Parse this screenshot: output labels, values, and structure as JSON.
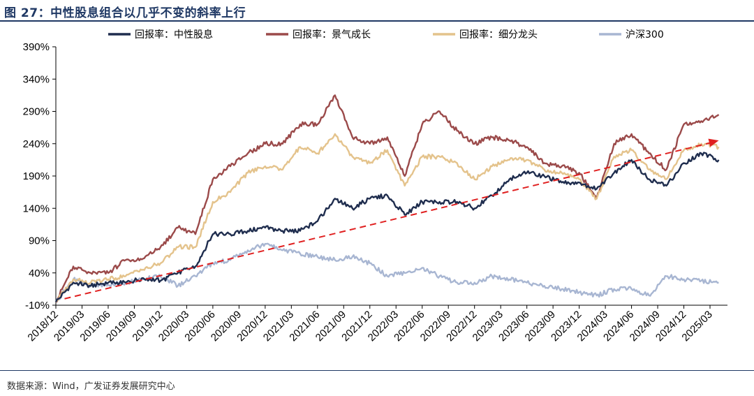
{
  "header": {
    "title": "图 27：中性股息组合以几乎不变的斜率上行"
  },
  "footer": {
    "source": "数据来源：Wind，广发证券发展研究中心"
  },
  "chart_data": {
    "type": "line",
    "title": "",
    "xlabel": "",
    "ylabel": "",
    "ylim": [
      -10,
      390
    ],
    "yticks": [
      "390%",
      "340%",
      "290%",
      "240%",
      "190%",
      "140%",
      "90%",
      "40%",
      "-10%"
    ],
    "ytick_values": [
      390,
      340,
      290,
      240,
      190,
      140,
      90,
      40,
      -10
    ],
    "xticks": [
      "2018/12",
      "2019/03",
      "2019/06",
      "2019/09",
      "2019/12",
      "2020/03",
      "2020/06",
      "2020/09",
      "2020/12",
      "2021/03",
      "2021/06",
      "2021/09",
      "2021/12",
      "2022/03",
      "2022/06",
      "2022/09",
      "2022/12",
      "2023/03",
      "2023/06",
      "2023/09",
      "2023/12",
      "2024/03",
      "2024/06",
      "2024/09",
      "2024/12",
      "2025/03"
    ],
    "x": [
      "2018/12",
      "2019/02",
      "2019/04",
      "2019/06",
      "2019/08",
      "2019/10",
      "2019/12",
      "2020/02",
      "2020/04",
      "2020/06",
      "2020/08",
      "2020/10",
      "2020/12",
      "2021/02",
      "2021/04",
      "2021/06",
      "2021/08",
      "2021/10",
      "2021/12",
      "2022/02",
      "2022/04",
      "2022/06",
      "2022/08",
      "2022/10",
      "2022/12",
      "2023/02",
      "2023/04",
      "2023/06",
      "2023/08",
      "2023/10",
      "2023/12",
      "2024/02",
      "2024/04",
      "2024/06",
      "2024/08",
      "2024/10",
      "2024/12",
      "2025/02",
      "2025/04"
    ],
    "legend_position": "top",
    "series": [
      {
        "name": "回报率：中性股息",
        "color": "#1f2d4e",
        "values": [
          -5,
          25,
          20,
          25,
          25,
          32,
          28,
          40,
          50,
          100,
          100,
          105,
          110,
          105,
          105,
          120,
          155,
          140,
          155,
          160,
          130,
          150,
          150,
          150,
          140,
          160,
          185,
          195,
          190,
          180,
          180,
          170,
          195,
          215,
          185,
          175,
          210,
          225,
          215
        ]
      },
      {
        "name": "回报率：景气成长",
        "color": "#9b4a4a",
        "values": [
          -5,
          50,
          40,
          40,
          60,
          62,
          80,
          110,
          100,
          185,
          205,
          225,
          240,
          240,
          270,
          270,
          315,
          250,
          240,
          250,
          190,
          270,
          290,
          260,
          240,
          250,
          245,
          235,
          210,
          205,
          195,
          155,
          240,
          255,
          225,
          200,
          270,
          275,
          285
        ]
      },
      {
        "name": "回报率：细分龙头",
        "color": "#e4c38c",
        "values": [
          -5,
          30,
          25,
          30,
          35,
          45,
          55,
          80,
          80,
          150,
          165,
          195,
          205,
          200,
          235,
          225,
          255,
          220,
          210,
          230,
          175,
          220,
          220,
          210,
          185,
          205,
          215,
          215,
          200,
          195,
          185,
          155,
          220,
          230,
          200,
          185,
          230,
          240,
          235
        ]
      },
      {
        "name": "沪深300",
        "color": "#a8b6d2",
        "values": [
          -5,
          30,
          20,
          22,
          25,
          30,
          35,
          20,
          35,
          55,
          60,
          75,
          85,
          75,
          70,
          65,
          60,
          65,
          55,
          35,
          40,
          48,
          35,
          25,
          25,
          35,
          30,
          25,
          20,
          15,
          10,
          5,
          15,
          15,
          5,
          35,
          30,
          28,
          25
        ]
      }
    ],
    "annotations": [
      {
        "type": "arrow",
        "style": "dashed",
        "color": "#e02020",
        "from": {
          "x": "2019/01",
          "y": 0
        },
        "to": {
          "x": "2025/04",
          "y": 245
        }
      }
    ],
    "grid": false
  }
}
